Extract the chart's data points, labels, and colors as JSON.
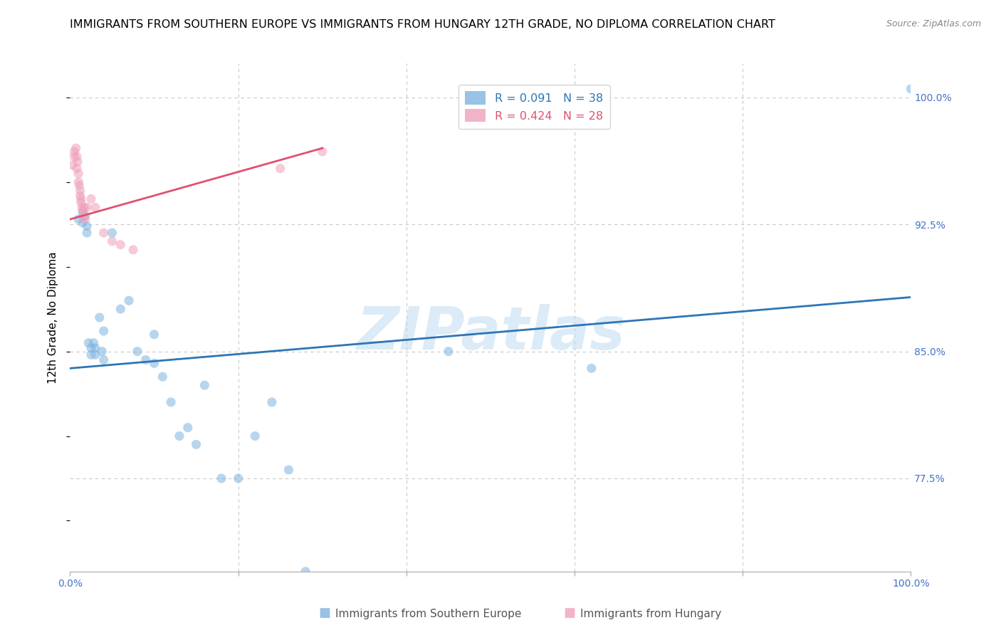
{
  "title": "IMMIGRANTS FROM SOUTHERN EUROPE VS IMMIGRANTS FROM HUNGARY 12TH GRADE, NO DIPLOMA CORRELATION CHART",
  "source": "Source: ZipAtlas.com",
  "ylabel": "12th Grade, No Diploma",
  "xlim": [
    0.0,
    1.0
  ],
  "ylim": [
    0.72,
    1.02
  ],
  "yticks": [
    0.775,
    0.85,
    0.925,
    1.0
  ],
  "ytick_labels": [
    "77.5%",
    "85.0%",
    "92.5%",
    "100.0%"
  ],
  "xticks": [
    0.0,
    0.2,
    0.4,
    0.6,
    0.8,
    1.0
  ],
  "xtick_labels": [
    "0.0%",
    "",
    "",
    "",
    "",
    "100.0%"
  ],
  "blue_scatter_x": [
    0.01,
    0.015,
    0.015,
    0.018,
    0.02,
    0.02,
    0.022,
    0.025,
    0.025,
    0.028,
    0.03,
    0.03,
    0.035,
    0.038,
    0.04,
    0.04,
    0.05,
    0.06,
    0.07,
    0.08,
    0.09,
    0.1,
    0.1,
    0.11,
    0.12,
    0.13,
    0.14,
    0.15,
    0.16,
    0.18,
    0.2,
    0.22,
    0.24,
    0.26,
    0.28,
    0.45,
    0.62,
    1.0
  ],
  "blue_scatter_y": [
    0.928,
    0.932,
    0.926,
    0.93,
    0.924,
    0.92,
    0.855,
    0.852,
    0.848,
    0.855,
    0.852,
    0.848,
    0.87,
    0.85,
    0.845,
    0.862,
    0.92,
    0.875,
    0.88,
    0.85,
    0.845,
    0.86,
    0.843,
    0.835,
    0.82,
    0.8,
    0.805,
    0.795,
    0.83,
    0.775,
    0.775,
    0.8,
    0.82,
    0.78,
    0.72,
    0.85,
    0.84,
    1.005
  ],
  "pink_scatter_x": [
    0.003,
    0.005,
    0.005,
    0.007,
    0.008,
    0.008,
    0.009,
    0.01,
    0.01,
    0.011,
    0.012,
    0.012,
    0.013,
    0.013,
    0.014,
    0.015,
    0.016,
    0.017,
    0.018,
    0.02,
    0.025,
    0.03,
    0.04,
    0.05,
    0.06,
    0.075,
    0.25,
    0.3
  ],
  "pink_scatter_y": [
    0.96,
    0.965,
    0.968,
    0.97,
    0.965,
    0.958,
    0.962,
    0.955,
    0.95,
    0.948,
    0.945,
    0.942,
    0.94,
    0.938,
    0.935,
    0.933,
    0.93,
    0.935,
    0.928,
    0.935,
    0.94,
    0.935,
    0.92,
    0.915,
    0.913,
    0.91,
    0.958,
    0.968
  ],
  "blue_line_x": [
    0.0,
    1.0
  ],
  "blue_line_y": [
    0.84,
    0.882
  ],
  "pink_line_x": [
    0.0,
    0.3
  ],
  "pink_line_y": [
    0.928,
    0.97
  ],
  "blue_color": "#7eb3e0",
  "pink_color": "#f0a0b8",
  "blue_line_color": "#2e75b6",
  "pink_line_color": "#e05070",
  "dot_size": 90,
  "dot_alpha": 0.55,
  "watermark": "ZIPatlas",
  "watermark_color": "#b8d8f0",
  "background_color": "#ffffff",
  "grid_color": "#c8c8c8",
  "tick_color": "#4472c4",
  "title_fontsize": 11.5,
  "axis_label_fontsize": 11,
  "tick_fontsize": 10,
  "legend_r1": "R = 0.091",
  "legend_n1": "N = 38",
  "legend_r2": "R = 0.424",
  "legend_n2": "N = 28"
}
